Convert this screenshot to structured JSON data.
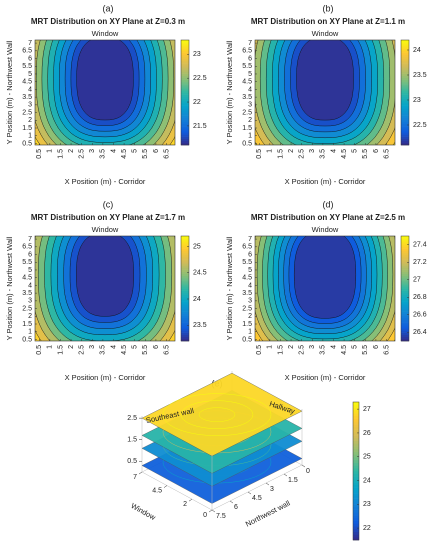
{
  "colormap": [
    "#352a87",
    "#0f5cdd",
    "#1481d6",
    "#06a4ca",
    "#2eb7a4",
    "#87bf77",
    "#d1bb59",
    "#fec832",
    "#f9fb0e"
  ],
  "chart_data": [
    {
      "type": "contour",
      "panel_label": "(a)",
      "title": "MRT Distribution on XY Plane at Z=0.3 m",
      "top_label": "Window",
      "x_label": "X Position (m) - Corridor",
      "y_label": "Y Position (m) - Northwest Wall",
      "xlim": [
        0.3,
        6.9
      ],
      "ylim": [
        0.4,
        7.2
      ],
      "xticks": [
        0.5,
        1,
        1.5,
        2,
        2.5,
        3,
        3.5,
        4,
        4.5,
        5,
        5.5,
        6,
        6.5
      ],
      "yticks": [
        0.5,
        1,
        1.5,
        2,
        2.5,
        3,
        3.5,
        4,
        4.5,
        5,
        5.5,
        6,
        6.5,
        7
      ],
      "clim": [
        21.1,
        23.3
      ],
      "cticks": [
        21.5,
        22,
        22.5,
        23
      ],
      "levels": [
        21.2,
        21.4,
        21.6,
        21.8,
        22,
        22.2,
        22.4,
        22.6,
        22.8,
        23,
        23.2
      ]
    },
    {
      "type": "contour",
      "panel_label": "(b)",
      "title": "MRT Distribution on XY Plane at Z=1.1 m",
      "top_label": "Window",
      "x_label": "X Position (m) - Corridor",
      "y_label": "Y Position (m) - Northwest Wall",
      "xlim": [
        0.3,
        6.9
      ],
      "ylim": [
        0.4,
        7.2
      ],
      "xticks": [
        0.5,
        1,
        1.5,
        2,
        2.5,
        3,
        3.5,
        4,
        4.5,
        5,
        5.5,
        6,
        6.5
      ],
      "yticks": [
        0.5,
        1,
        1.5,
        2,
        2.5,
        3,
        3.5,
        4,
        4.5,
        5,
        5.5,
        6,
        6.5,
        7
      ],
      "clim": [
        22.1,
        24.2
      ],
      "cticks": [
        22.5,
        23,
        23.5,
        24
      ],
      "levels": [
        22.2,
        22.4,
        22.6,
        22.8,
        23,
        23.2,
        23.4,
        23.6,
        23.8,
        24
      ]
    },
    {
      "type": "contour",
      "panel_label": "(c)",
      "title": "MRT Distribution on XY Plane at Z=1.7 m",
      "top_label": "Window",
      "x_label": "X Position (m) - Corridor",
      "y_label": "Y Position (m) - Northwest Wall",
      "xlim": [
        0.3,
        6.9
      ],
      "ylim": [
        0.4,
        7.2
      ],
      "xticks": [
        0.5,
        1,
        1.5,
        2,
        2.5,
        3,
        3.5,
        4,
        4.5,
        5,
        5.5,
        6,
        6.5
      ],
      "yticks": [
        0.5,
        1,
        1.5,
        2,
        2.5,
        3,
        3.5,
        4,
        4.5,
        5,
        5.5,
        6,
        6.5,
        7
      ],
      "clim": [
        23.2,
        25.2
      ],
      "cticks": [
        23.5,
        24,
        24.5,
        25
      ],
      "levels": [
        23.3,
        23.5,
        23.7,
        23.9,
        24.1,
        24.3,
        24.5,
        24.7,
        24.9,
        25.1
      ]
    },
    {
      "type": "contour",
      "panel_label": "(d)",
      "title": "MRT Distribution on XY Plane at Z=2.5 m",
      "top_label": "Window",
      "x_label": "X Position (m) - Corridor",
      "y_label": "Y Position (m) - Northwest Wall",
      "xlim": [
        0.3,
        6.9
      ],
      "ylim": [
        0.4,
        7.2
      ],
      "xticks": [
        0.5,
        1,
        1.5,
        2,
        2.5,
        3,
        3.5,
        4,
        4.5,
        5,
        5.5,
        6,
        6.5
      ],
      "yticks": [
        0.5,
        1,
        1.5,
        2,
        2.5,
        3,
        3.5,
        4,
        4.5,
        5,
        5.5,
        6,
        6.5,
        7
      ],
      "clim": [
        26.3,
        27.5
      ],
      "cticks": [
        26.4,
        26.6,
        26.8,
        27,
        27.2,
        27.4
      ],
      "levels": [
        26.4,
        26.5,
        26.6,
        26.7,
        26.8,
        26.9,
        27,
        27.1,
        27.2,
        27.3,
        27.4
      ]
    },
    {
      "type": "slices3d",
      "panel_label": "(e)",
      "wall_labels": [
        "Southeast wall",
        "Hallway"
      ],
      "w_label": "Window",
      "n_label": "Northwest wall",
      "wlim": [
        0,
        7
      ],
      "nlim": [
        0,
        7.5
      ],
      "zlim": [
        0,
        2.6
      ],
      "wticks": [
        0,
        2,
        4.5,
        7
      ],
      "nticks": [
        0,
        1.5,
        3,
        4.5,
        6,
        7.5
      ],
      "zticks": [
        0.5,
        1.5,
        2.5
      ],
      "clim": [
        21.5,
        27.3
      ],
      "cticks": [
        22,
        23,
        24,
        25,
        26,
        27
      ],
      "slices": [
        {
          "z": 0.3,
          "value": 22.3
        },
        {
          "z": 1.1,
          "value": 23.2
        },
        {
          "z": 1.7,
          "value": 24.3
        },
        {
          "z": 2.5,
          "value": 26.8
        }
      ]
    }
  ]
}
